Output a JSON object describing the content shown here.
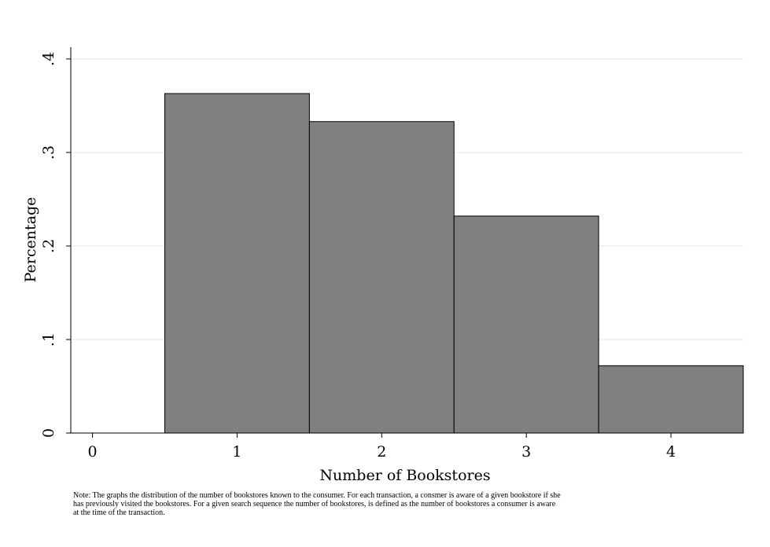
{
  "chart_data": {
    "type": "bar",
    "categories": [
      "1",
      "2",
      "3",
      "4"
    ],
    "x": [
      1,
      2,
      3,
      4
    ],
    "values": [
      0.363,
      0.333,
      0.232,
      0.072
    ],
    "bin_width": 1,
    "xlabel": "Number of Bookstores",
    "ylabel": "Percentage",
    "xlim": [
      -0.15,
      4.5
    ],
    "ylim": [
      0,
      0.4
    ],
    "x_ticks": [
      0,
      1,
      2,
      3,
      4
    ],
    "x_tick_labels": [
      "0",
      "1",
      "2",
      "3",
      "4"
    ],
    "y_ticks": [
      0,
      0.1,
      0.2,
      0.3,
      0.4
    ],
    "y_tick_labels": [
      "0",
      ".1",
      ".2",
      ".3",
      ".4"
    ],
    "grid": true,
    "colors": {
      "bar_fill": "#808080",
      "bar_stroke": "#000000",
      "grid": "#e6e6e6",
      "axis": "#000000"
    }
  },
  "note": {
    "lines": [
      "Note: The graphs the distribution of the number of bookstores known to the consumer. For each transaction, a consmer is aware of a given bookstore if she",
      "has previously visited the bookstores. For a given search sequence the number of bookstores, is defined as the number of bookstores a consumer is aware",
      "at the time of the transaction."
    ]
  }
}
